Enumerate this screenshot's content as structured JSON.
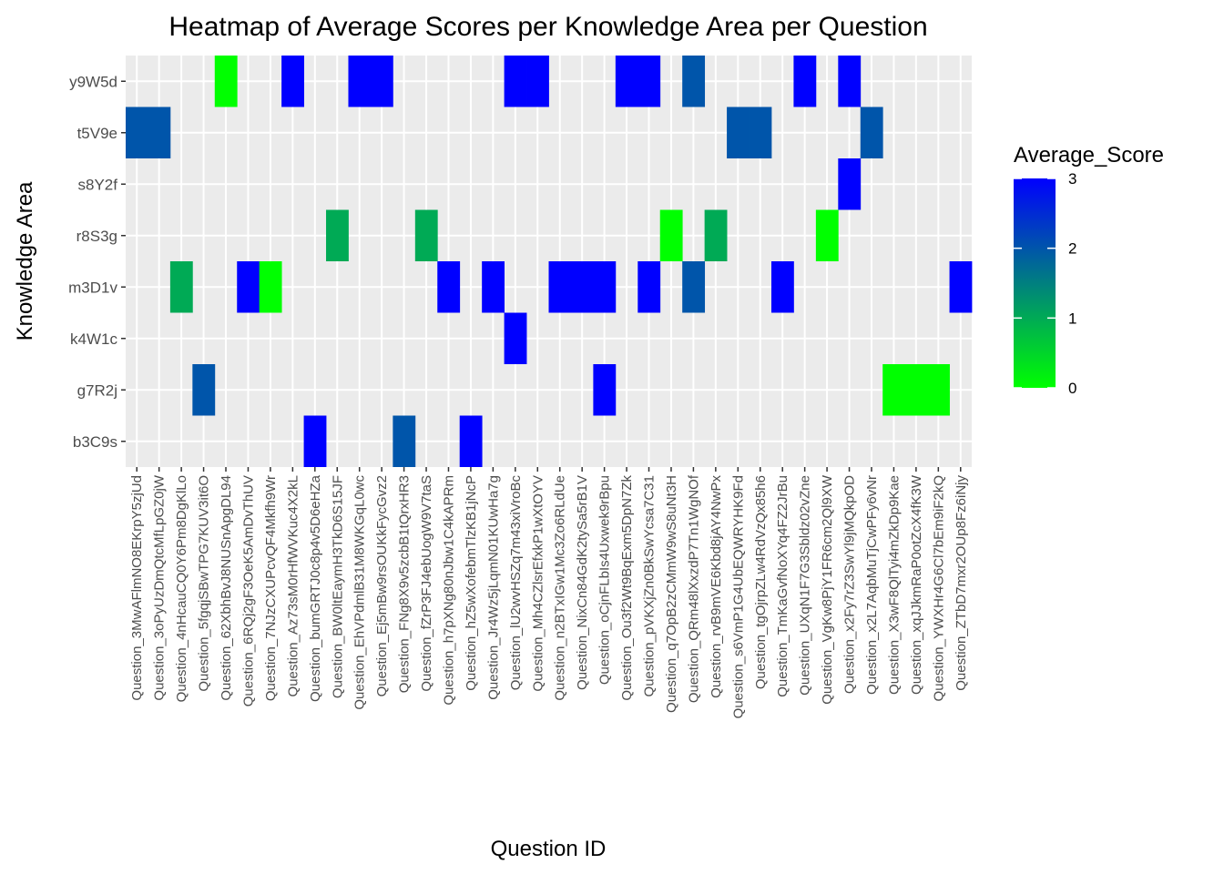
{
  "chart_data": {
    "type": "heatmap",
    "title": "Heatmap of Average Scores per Knowledge Area per Question",
    "xlabel": "Question ID",
    "ylabel": "Knowledge Area",
    "y_categories": [
      "b3C9s",
      "g7R2j",
      "k4W1c",
      "m3D1v",
      "r8S3g",
      "s8Y2f",
      "t5V9e",
      "y9W5d"
    ],
    "x_categories": [
      "Question_3MwAFlmNO8EKrpY5zjUd",
      "Question_3oPyUzDmQtcMfLpGZ0jW",
      "Question_4nHcauCQ0Y6Pm8DgKlLo",
      "Question_5fgqjSBwTPG7KUV3it6O",
      "Question_62XbhBvJ8NUSnApgDL94",
      "Question_6RQj2gF3OeK5AmDvThUV",
      "Question_7NJzCXUPcvQF4Mkfh9Wr",
      "Question_Az73sM0rHfWVKuc4X2kL",
      "Question_bumGRTJ0c8p4v5D6eHZa",
      "Question_BW0ltEaymH3TkD6S15JF",
      "Question_EhVPdmlB31M8WKGqL0wc",
      "Question_Ej5mBw9rsOUKkFycGvz2",
      "Question_FNg8X9v5zcbB1tQrxHR3",
      "Question_fZrP3FJ4ebUogW9V7taS",
      "Question_h7pXNg80nJbw1C4kAPRm",
      "Question_hZ5wXofebmTlzKB1jNcP",
      "Question_Jr4Wz5jLqmN01KUwHa7g",
      "Question_lU2wvHSZq7m43xiVroBc",
      "Question_Mh4CZlsrEfxkP1wXtOYV",
      "Question_n2BTxIGw1Mc3Zo6RLdUe",
      "Question_NixCn84GdK2tySa5rB1V",
      "Question_oCjnFLbIs4Uxwek9rBpu",
      "Question_Ou3f2Wt9BqExm5DpN7Zk",
      "Question_pVKXjZn0BkSwYcsa7C31",
      "Question_q7OpB2zCMmW9wS8uNt3H",
      "Question_QRm48lXxzdP7Tn1WgNOf",
      "Question_rvB9mVE6Kbd8jAY4NwPx",
      "Question_s6VmP1G4UbEQWRYHK9Fd",
      "Question_tgOjrpZLw4RdVzQx85h6",
      "Question_TmKaGvfNoXYq4FZ2JrBu",
      "Question_UXqN1F7G3Sbldz02vZne",
      "Question_VgKw8PjY1FR6cm2Ql9XW",
      "Question_x2Fy7rZ3SwYl9jMQkpOD",
      "Question_x2L7AqbMuTjCwPFy6vNr",
      "Question_X3wF8QlTyi4mZkDp9Kae",
      "Question_xqJJkmRaP0otZcX4fK3W",
      "Question_YWXHr4G6Cl7bEm9iF2kQ",
      "Question_ZTbD7mxr2OUp8Fz6iNjy"
    ],
    "cells": [
      {
        "x": 0,
        "y": "t5V9e",
        "value": 2
      },
      {
        "x": 1,
        "y": "t5V9e",
        "value": 2
      },
      {
        "x": 2,
        "y": "m3D1v",
        "value": 1
      },
      {
        "x": 3,
        "y": "g7R2j",
        "value": 2
      },
      {
        "x": 4,
        "y": "y9W5d",
        "value": 0
      },
      {
        "x": 5,
        "y": "m3D1v",
        "value": 3
      },
      {
        "x": 6,
        "y": "m3D1v",
        "value": 0
      },
      {
        "x": 7,
        "y": "y9W5d",
        "value": 3
      },
      {
        "x": 8,
        "y": "b3C9s",
        "value": 3
      },
      {
        "x": 9,
        "y": "r8S3g",
        "value": 1
      },
      {
        "x": 10,
        "y": "y9W5d",
        "value": 3
      },
      {
        "x": 11,
        "y": "y9W5d",
        "value": 3
      },
      {
        "x": 12,
        "y": "b3C9s",
        "value": 2
      },
      {
        "x": 13,
        "y": "r8S3g",
        "value": 1
      },
      {
        "x": 14,
        "y": "m3D1v",
        "value": 3
      },
      {
        "x": 15,
        "y": "b3C9s",
        "value": 3
      },
      {
        "x": 16,
        "y": "m3D1v",
        "value": 3
      },
      {
        "x": 17,
        "y": "y9W5d",
        "value": 3
      },
      {
        "x": 17,
        "y": "k4W1c",
        "value": 3
      },
      {
        "x": 18,
        "y": "y9W5d",
        "value": 3
      },
      {
        "x": 19,
        "y": "m3D1v",
        "value": 3
      },
      {
        "x": 20,
        "y": "m3D1v",
        "value": 3
      },
      {
        "x": 21,
        "y": "m3D1v",
        "value": 3
      },
      {
        "x": 21,
        "y": "g7R2j",
        "value": 3
      },
      {
        "x": 22,
        "y": "y9W5d",
        "value": 3
      },
      {
        "x": 23,
        "y": "y9W5d",
        "value": 3
      },
      {
        "x": 23,
        "y": "m3D1v",
        "value": 3
      },
      {
        "x": 24,
        "y": "r8S3g",
        "value": 0
      },
      {
        "x": 25,
        "y": "y9W5d",
        "value": 2
      },
      {
        "x": 25,
        "y": "m3D1v",
        "value": 2
      },
      {
        "x": 26,
        "y": "r8S3g",
        "value": 1
      },
      {
        "x": 27,
        "y": "t5V9e",
        "value": 2
      },
      {
        "x": 28,
        "y": "t5V9e",
        "value": 2
      },
      {
        "x": 29,
        "y": "m3D1v",
        "value": 3
      },
      {
        "x": 30,
        "y": "y9W5d",
        "value": 3
      },
      {
        "x": 31,
        "y": "r8S3g",
        "value": 0
      },
      {
        "x": 32,
        "y": "y9W5d",
        "value": 3
      },
      {
        "x": 32,
        "y": "s8Y2f",
        "value": 3
      },
      {
        "x": 33,
        "y": "t5V9e",
        "value": 2
      },
      {
        "x": 34,
        "y": "g7R2j",
        "value": 0
      },
      {
        "x": 35,
        "y": "g7R2j",
        "value": 0
      },
      {
        "x": 36,
        "y": "g7R2j",
        "value": 0
      },
      {
        "x": 37,
        "y": "m3D1v",
        "value": 3
      }
    ],
    "color_scale": {
      "low": "#00ff00",
      "high": "#0000ff",
      "min": 0,
      "max": 3
    },
    "legend": {
      "title": "Average_Score",
      "ticks": [
        "0",
        "1",
        "2",
        "3"
      ],
      "position": "right"
    },
    "grid": true
  }
}
